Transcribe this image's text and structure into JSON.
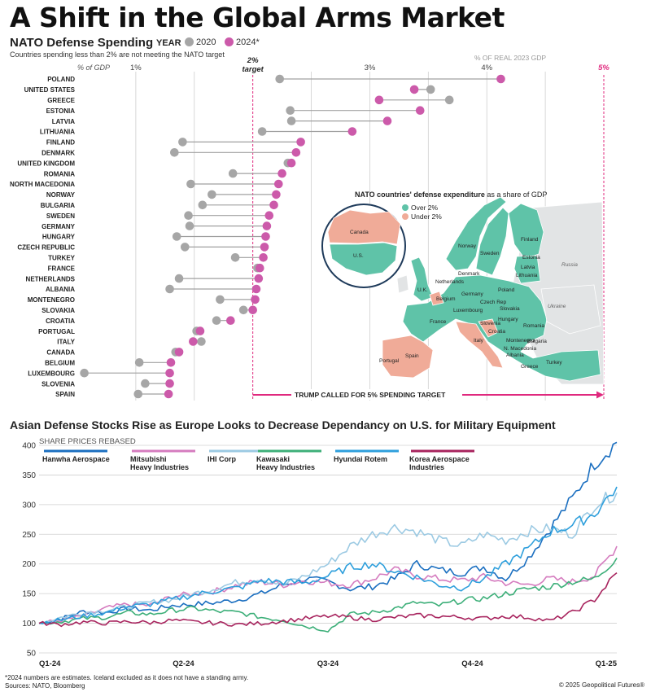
{
  "page": {
    "title": "A Shift in the Global Arms Market",
    "copyright": "© 2025 Geopolitical Futures®",
    "footnote": "*2024 numbers are estimates. Iceland excluded as it does not have a standing army.",
    "sources": "Sources: NATO, Bloomberg",
    "colors": {
      "y2020": "#a6a6a6",
      "y2024": "#cc5aaa",
      "accent": "#e0297e",
      "over": "#5fc3a8",
      "under": "#f0ab98"
    }
  },
  "nato": {
    "heading": "NATO Defense Spending",
    "year_label": "YEAR",
    "legend_2020": "2020",
    "legend_2024": "2024*",
    "note": "Countries spending less than 2% are not meeting the NATO target",
    "right_unit": "% OF REAL 2023 GDP",
    "target_label_1": "2%",
    "target_label_2": "target",
    "five_label": "5%",
    "arrow_label": "TRUMP CALLED FOR 5% SPENDING TARGET",
    "map": {
      "title_bold": "NATO countries' defense expenditure",
      "title_rest": " as a share of GDP",
      "legend_over": "Over 2%",
      "legend_under": "Under 2%",
      "labels": [
        "Canada",
        "U.S.",
        "Norway",
        "Finland",
        "Sweden",
        "Estonia",
        "Latvia",
        "Lithuania",
        "Denmark",
        "Russia",
        "Netherlands",
        "U.K.",
        "Poland",
        "Germany",
        "Belgium",
        "Czech Rep",
        "Luxembourg",
        "Slovakia",
        "Ukraine",
        "France",
        "Hungary",
        "Romania",
        "Slovenia",
        "Croatia",
        "Italy",
        "Montenegro",
        "Bulgaria",
        "N. Macedonia",
        "Albania",
        "Turkey",
        "Spain",
        "Portugal",
        "Greece"
      ]
    }
  },
  "stocks": {
    "heading": "Asian Defense Stocks Rise as Europe Looks to Decrease Dependancy on U.S. for Military Equipment",
    "subheading": "SHARE PRICES REBASED",
    "legend": [
      {
        "name_lines": [
          "Hanwha Aerospace"
        ]
      },
      {
        "name_lines": [
          "Mitsubishi",
          "Heavy Industries"
        ]
      },
      {
        "name_lines": [
          "IHI Corp"
        ]
      },
      {
        "name_lines": [
          "Kawasaki",
          "Heavy Industries"
        ]
      },
      {
        "name_lines": [
          "Hyundai Rotem"
        ]
      },
      {
        "name_lines": [
          "Korea Aerospace",
          "Industries"
        ]
      }
    ]
  },
  "chart_data": [
    {
      "type": "scatter",
      "title": "NATO Defense Spending",
      "xlabel": "% of GDP",
      "xlim": [
        0.5,
        5.0
      ],
      "x_ticks": [
        1,
        3,
        4
      ],
      "x_tick_labels": [
        "1%",
        "3%",
        "4%"
      ],
      "x_start_label": "% of GDP",
      "reference_lines": [
        {
          "x": 2,
          "label": "2% target"
        },
        {
          "x": 5,
          "label": "5%"
        }
      ],
      "grid": true,
      "legend": "top-left",
      "series": [
        {
          "name": "2020"
        },
        {
          "name": "2024*"
        }
      ],
      "rows": [
        {
          "country": "POLAND",
          "v2020": 2.23,
          "v2024": 4.12
        },
        {
          "country": "UNITED STATES",
          "v2020": 3.52,
          "v2024": 3.38
        },
        {
          "country": "GREECE",
          "v2020": 3.68,
          "v2024": 3.08
        },
        {
          "country": "ESTONIA",
          "v2020": 2.32,
          "v2024": 3.43
        },
        {
          "country": "LATVIA",
          "v2020": 2.33,
          "v2024": 3.15
        },
        {
          "country": "LITHUANIA",
          "v2020": 2.08,
          "v2024": 2.85
        },
        {
          "country": "FINLAND",
          "v2020": 1.4,
          "v2024": 2.41
        },
        {
          "country": "DENMARK",
          "v2020": 1.33,
          "v2024": 2.37
        },
        {
          "country": "UNITED KINGDOM",
          "v2020": 2.3,
          "v2024": 2.33
        },
        {
          "country": "ROMANIA",
          "v2020": 1.83,
          "v2024": 2.25
        },
        {
          "country": "NORTH MACEDONIA",
          "v2020": 1.47,
          "v2024": 2.22
        },
        {
          "country": "NORWAY",
          "v2020": 1.65,
          "v2024": 2.2
        },
        {
          "country": "BULGARIA",
          "v2020": 1.57,
          "v2024": 2.18
        },
        {
          "country": "SWEDEN",
          "v2020": 1.45,
          "v2024": 2.14
        },
        {
          "country": "GERMANY",
          "v2020": 1.46,
          "v2024": 2.12
        },
        {
          "country": "HUNGARY",
          "v2020": 1.35,
          "v2024": 2.11
        },
        {
          "country": "CZECH REPUBLIC",
          "v2020": 1.42,
          "v2024": 2.1
        },
        {
          "country": "TURKEY",
          "v2020": 1.85,
          "v2024": 2.09
        },
        {
          "country": "FRANCE",
          "v2020": 2.04,
          "v2024": 2.06
        },
        {
          "country": "NETHERLANDS",
          "v2020": 1.37,
          "v2024": 2.05
        },
        {
          "country": "ALBANIA",
          "v2020": 1.29,
          "v2024": 2.03
        },
        {
          "country": "MONTENEGRO",
          "v2020": 1.72,
          "v2024": 2.02
        },
        {
          "country": "SLOVAKIA",
          "v2020": 1.92,
          "v2024": 2.0
        },
        {
          "country": "CROATIA",
          "v2020": 1.69,
          "v2024": 1.81
        },
        {
          "country": "PORTUGAL",
          "v2020": 1.52,
          "v2024": 1.55
        },
        {
          "country": "ITALY",
          "v2020": 1.56,
          "v2024": 1.49
        },
        {
          "country": "CANADA",
          "v2020": 1.34,
          "v2024": 1.37
        },
        {
          "country": "BELGIUM",
          "v2020": 1.03,
          "v2024": 1.3
        },
        {
          "country": "LUXEMBOURG",
          "v2020": 0.56,
          "v2024": 1.29
        },
        {
          "country": "SLOVENIA",
          "v2020": 1.08,
          "v2024": 1.29
        },
        {
          "country": "SPAIN",
          "v2020": 1.02,
          "v2024": 1.28
        }
      ]
    },
    {
      "type": "line",
      "title": "Asian Defense Stocks Rise as Europe Looks to Decrease Dependancy on U.S. for Military Equipment",
      "ylabel": "SHARE PRICES REBASED",
      "ylim": [
        50,
        400
      ],
      "y_ticks": [
        50,
        100,
        150,
        200,
        250,
        300,
        350,
        400
      ],
      "x_ticks": [
        "Q1-24",
        "Q2-24",
        "Q3-24",
        "Q4-24",
        "Q1-25"
      ],
      "x": [
        0,
        2,
        4,
        6,
        8,
        10,
        12,
        14,
        16,
        18,
        20,
        22,
        24,
        26,
        28,
        30,
        32,
        34,
        36,
        38,
        40,
        42,
        44,
        46,
        48,
        50,
        52
      ],
      "grid": true,
      "legend": "top-left",
      "series": [
        {
          "name": "Hanwha Aerospace",
          "color": "#1b6fc0",
          "values": [
            100,
            108,
            120,
            118,
            125,
            122,
            130,
            132,
            135,
            140,
            150,
            165,
            175,
            170,
            158,
            162,
            175,
            200,
            190,
            185,
            195,
            175,
            210,
            260,
            310,
            370,
            405
          ]
        },
        {
          "name": "Mitsubishi Heavy Industries",
          "color": "#d57cbf",
          "values": [
            100,
            105,
            112,
            125,
            132,
            130,
            145,
            150,
            155,
            165,
            170,
            165,
            172,
            168,
            165,
            175,
            190,
            180,
            175,
            172,
            178,
            168,
            165,
            175,
            170,
            180,
            230
          ]
        },
        {
          "name": "IHI Corp",
          "color": "#9ccae3",
          "values": [
            100,
            110,
            118,
            122,
            128,
            135,
            140,
            150,
            160,
            170,
            175,
            165,
            180,
            200,
            230,
            250,
            262,
            255,
            240,
            230,
            250,
            240,
            255,
            260,
            250,
            300,
            320
          ]
        },
        {
          "name": "Kawasaki Heavy Industries",
          "color": "#3daf79",
          "values": [
            100,
            103,
            108,
            110,
            118,
            115,
            122,
            125,
            120,
            118,
            110,
            105,
            95,
            88,
            115,
            118,
            125,
            135,
            130,
            138,
            142,
            150,
            158,
            162,
            170,
            175,
            210
          ]
        },
        {
          "name": "Hyundai Rotem",
          "color": "#2e9fdc",
          "values": [
            100,
            106,
            112,
            118,
            128,
            132,
            140,
            148,
            155,
            160,
            172,
            170,
            168,
            180,
            195,
            200,
            188,
            178,
            165,
            160,
            175,
            200,
            225,
            255,
            265,
            285,
            330
          ]
        },
        {
          "name": "Korea Aerospace Industries",
          "color": "#a8245e",
          "values": [
            100,
            98,
            102,
            100,
            103,
            101,
            105,
            102,
            100,
            98,
            100,
            104,
            108,
            112,
            110,
            106,
            110,
            113,
            112,
            110,
            108,
            112,
            110,
            104,
            118,
            140,
            185
          ]
        }
      ]
    }
  ]
}
